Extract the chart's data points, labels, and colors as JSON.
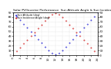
{
  "title": "Solar PV/Inverter Performance  Sun Altitude Angle & Sun Incidence Angle on PV Panels",
  "background_color": "#ffffff",
  "grid_color": "#bbbbbb",
  "blue_color": "#0000cc",
  "red_color": "#cc0000",
  "x_values": [
    0,
    1,
    2,
    3,
    4,
    5,
    6,
    7,
    8,
    9,
    10,
    11,
    12,
    13,
    14,
    15,
    16,
    17,
    18,
    19,
    20,
    21,
    22,
    23,
    24
  ],
  "blue_values": [
    90,
    82,
    74,
    66,
    58,
    50,
    42,
    34,
    26,
    18,
    10,
    5,
    2,
    5,
    10,
    18,
    26,
    34,
    42,
    50,
    58,
    66,
    74,
    82,
    90
  ],
  "red_values": [
    0,
    8,
    16,
    24,
    32,
    40,
    48,
    56,
    64,
    72,
    80,
    85,
    88,
    85,
    80,
    72,
    64,
    56,
    48,
    40,
    32,
    24,
    16,
    8,
    0
  ],
  "xlim": [
    0,
    24
  ],
  "ylim": [
    0,
    90
  ],
  "title_fontsize": 3.2,
  "tick_fontsize": 2.8,
  "legend_labels": [
    "Sun Altitude (deg)",
    "Sun Incidence Angle (deg)"
  ],
  "legend_fontsize": 2.5,
  "yticks": [
    0,
    10,
    20,
    30,
    40,
    50,
    60,
    70,
    80,
    90
  ],
  "xticks": [
    0,
    2,
    4,
    6,
    8,
    10,
    12,
    14,
    16,
    18,
    20,
    22,
    24
  ]
}
